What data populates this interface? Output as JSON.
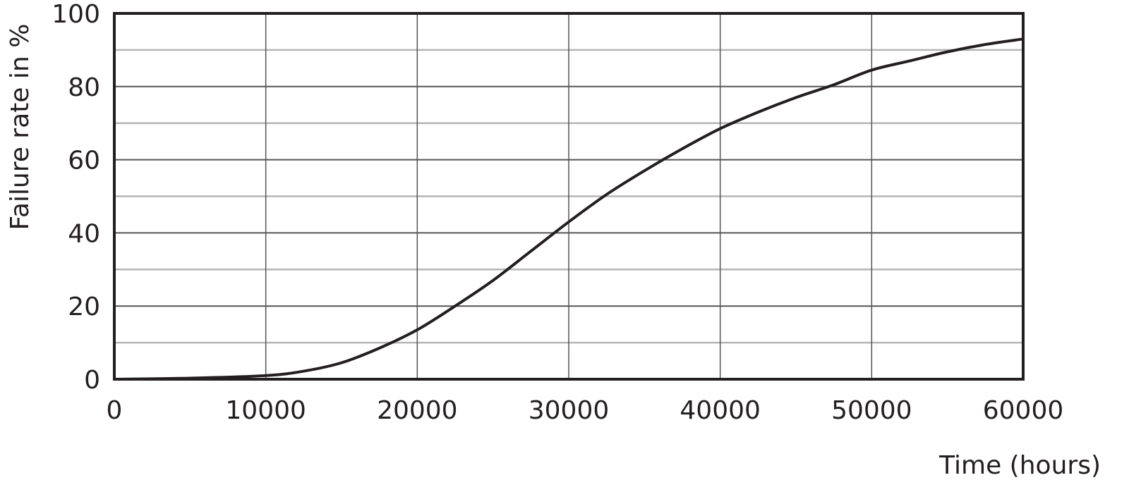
{
  "chart_data": {
    "type": "line",
    "title": "",
    "xlabel": "Time (hours)",
    "ylabel": "Failure rate in %",
    "xlim": [
      0,
      60000
    ],
    "ylim": [
      0,
      100
    ],
    "xticks": [
      0,
      10000,
      20000,
      30000,
      40000,
      50000,
      60000
    ],
    "xtick_labels": [
      "0",
      "10000",
      "20000",
      "30000",
      "40000",
      "50000",
      "60000"
    ],
    "yticks": [
      0,
      20,
      40,
      60,
      80,
      100
    ],
    "ytick_labels": [
      "0",
      "20",
      "40",
      "60",
      "80",
      "100"
    ],
    "grid": true,
    "minor_y_grid": [
      10,
      30,
      50,
      70,
      90
    ],
    "colors": {
      "line": "#231f20",
      "grid_major": "#555555",
      "grid_minor": "#b5b5b5"
    },
    "series": [
      {
        "x": [
          0,
          5000,
          10000,
          12500,
          15000,
          17500,
          20000,
          22500,
          25000,
          27500,
          30000,
          32500,
          35000,
          37500,
          40000,
          42500,
          45000,
          47500,
          50000,
          52500,
          55000,
          57500,
          60000
        ],
        "y": [
          0,
          0.3,
          1,
          2.2,
          4.5,
          8.5,
          13.5,
          20,
          27,
          35,
          43,
          50.5,
          57,
          63,
          68.5,
          73,
          77,
          80.5,
          84.5,
          87,
          89.5,
          91.5,
          93
        ]
      }
    ]
  }
}
